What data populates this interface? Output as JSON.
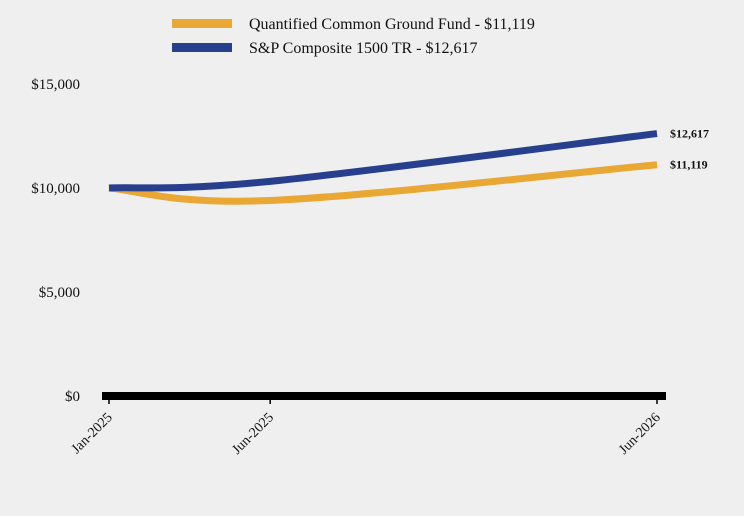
{
  "chart_data": {
    "type": "line",
    "x": [
      "Jan-2025",
      "Jun-2025",
      "Jun-2026"
    ],
    "series": [
      {
        "name": "Quantified Common Ground Fund",
        "legend_label": "Quantified Common Ground Fund - $11,119",
        "end_label": "$11,119",
        "color": "#e9a733",
        "values": [
          10000,
          9400,
          11119
        ]
      },
      {
        "name": "S&P Composite 1500 TR",
        "legend_label": "S&P Composite 1500 TR - $12,617",
        "end_label": "$12,617",
        "color": "#273f8c",
        "values": [
          10000,
          10320,
          12617
        ]
      }
    ],
    "yticks": [
      0,
      5000,
      10000,
      15000
    ],
    "ytick_labels": [
      "$0",
      "$5,000",
      "$10,000",
      "$15,000"
    ],
    "ylim": [
      0,
      15000
    ],
    "grid": false,
    "legend_position": "top",
    "title": "",
    "xlabel": "",
    "ylabel": ""
  }
}
